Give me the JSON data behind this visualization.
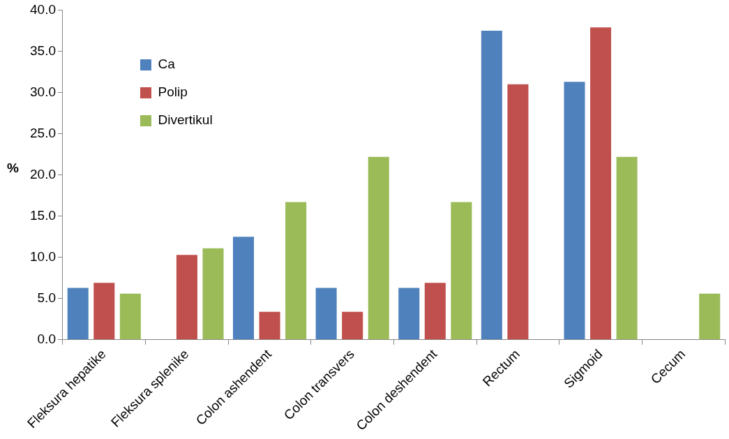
{
  "chart_data": {
    "type": "bar",
    "ylabel": "%",
    "categories": [
      "Fleksura hepatike",
      "Fleksura splenike",
      "Colon ashendent",
      "Colon transvers",
      "Colon deshendent",
      "Rectum",
      "Sigmoid",
      "Cecum"
    ],
    "series": [
      {
        "name": "Ca",
        "color": "#4f81bd",
        "values": [
          6.3,
          0,
          12.5,
          6.3,
          6.3,
          37.5,
          31.3,
          0
        ]
      },
      {
        "name": "Polip",
        "color": "#c0504d",
        "values": [
          6.9,
          10.3,
          3.4,
          3.4,
          6.9,
          31.0,
          37.9,
          0
        ]
      },
      {
        "name": "Divertikul",
        "color": "#9bbb59",
        "values": [
          5.6,
          11.1,
          16.7,
          22.2,
          16.7,
          0,
          22.2,
          5.6
        ]
      }
    ],
    "ylim": [
      0,
      40
    ],
    "yticks": [
      {
        "value": 0,
        "label": "0.0"
      },
      {
        "value": 5,
        "label": "5.0"
      },
      {
        "value": 10,
        "label": "10.0"
      },
      {
        "value": 15,
        "label": "15.0"
      },
      {
        "value": 20,
        "label": "20.0"
      },
      {
        "value": 25,
        "label": "25.0"
      },
      {
        "value": 30,
        "label": "30.0"
      },
      {
        "value": 35,
        "label": "35.0"
      },
      {
        "value": 40,
        "label": "40.0"
      }
    ],
    "grid": false,
    "legend": "top left"
  }
}
